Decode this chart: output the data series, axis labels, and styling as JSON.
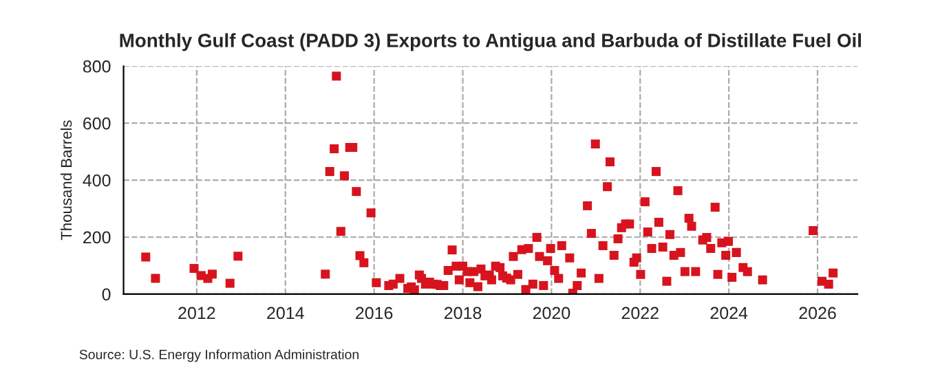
{
  "chart_data": {
    "type": "scatter",
    "title": "Monthly Gulf Coast (PADD 3) Exports to Antigua and Barbuda of Distillate Fuel Oil",
    "ylabel": "Thousand Barrels",
    "annotations": [
      "Source: U.S. Energy Information Administration"
    ],
    "marker": "square",
    "grid": true,
    "legend": false,
    "xlim": [
      2010.35,
      2026.9
    ],
    "xticks": [
      2012,
      2014,
      2016,
      2018,
      2020,
      2022,
      2024,
      2026
    ],
    "ylim": [
      0,
      800
    ],
    "yticks": [
      0,
      200,
      400,
      600,
      800
    ],
    "series": [
      {
        "color": "#d7141e",
        "x": [
          2010.85,
          2011.07,
          2011.94,
          2012.1,
          2012.25,
          2012.35,
          2012.75,
          2012.93,
          2014.9,
          2015.0,
          2015.1,
          2015.15,
          2015.25,
          2015.33,
          2015.45,
          2015.52,
          2015.6,
          2015.68,
          2015.77,
          2015.93,
          2016.05,
          2016.33,
          2016.43,
          2016.58,
          2016.76,
          2016.84,
          2016.91,
          2017.02,
          2017.07,
          2017.16,
          2017.25,
          2017.33,
          2017.42,
          2017.49,
          2017.57,
          2017.67,
          2017.76,
          2017.85,
          2017.92,
          2018.0,
          2018.1,
          2018.16,
          2018.25,
          2018.34,
          2018.41,
          2018.5,
          2018.6,
          2018.65,
          2018.74,
          2018.84,
          2018.9,
          2018.99,
          2019.08,
          2019.14,
          2019.24,
          2019.33,
          2019.42,
          2019.48,
          2019.58,
          2019.67,
          2019.73,
          2019.82,
          2019.91,
          2019.98,
          2020.07,
          2020.16,
          2020.23,
          2020.41,
          2020.48,
          2020.58,
          2020.67,
          2020.81,
          2020.9,
          2020.99,
          2021.07,
          2021.16,
          2021.26,
          2021.32,
          2021.41,
          2021.5,
          2021.58,
          2021.67,
          2021.76,
          2021.86,
          2021.92,
          2022.01,
          2022.11,
          2022.17,
          2022.26,
          2022.36,
          2022.42,
          2022.51,
          2022.6,
          2022.67,
          2022.76,
          2022.85,
          2022.91,
          2023.01,
          2023.1,
          2023.16,
          2023.25,
          2023.41,
          2023.5,
          2023.59,
          2023.69,
          2023.75,
          2023.84,
          2023.93,
          2023.99,
          2024.07,
          2024.17,
          2024.32,
          2024.42,
          2024.76,
          2025.9,
          2026.1,
          2026.25,
          2026.35
        ],
        "values": [
          130,
          55,
          90,
          65,
          55,
          70,
          38,
          133,
          70,
          430,
          510,
          765,
          220,
          415,
          515,
          515,
          360,
          135,
          110,
          285,
          40,
          30,
          35,
          55,
          20,
          25,
          15,
          67,
          55,
          35,
          42,
          35,
          34,
          30,
          30,
          83,
          155,
          98,
          50,
          98,
          79,
          40,
          79,
          26,
          88,
          64,
          67,
          50,
          98,
          93,
          64,
          56,
          50,
          132,
          69,
          156,
          16,
          160,
          35,
          199,
          132,
          30,
          117,
          160,
          83,
          55,
          170,
          127,
          3,
          30,
          74,
          310,
          213,
          527,
          55,
          170,
          377,
          464,
          136,
          194,
          233,
          246,
          246,
          112,
          127,
          69,
          324,
          218,
          160,
          430,
          252,
          165,
          45,
          209,
          136,
          363,
          146,
          79,
          266,
          238,
          79,
          190,
          199,
          160,
          305,
          69,
          180,
          136,
          185,
          59,
          146,
          93,
          79,
          50,
          223,
          45,
          35,
          74
        ]
      }
    ]
  }
}
